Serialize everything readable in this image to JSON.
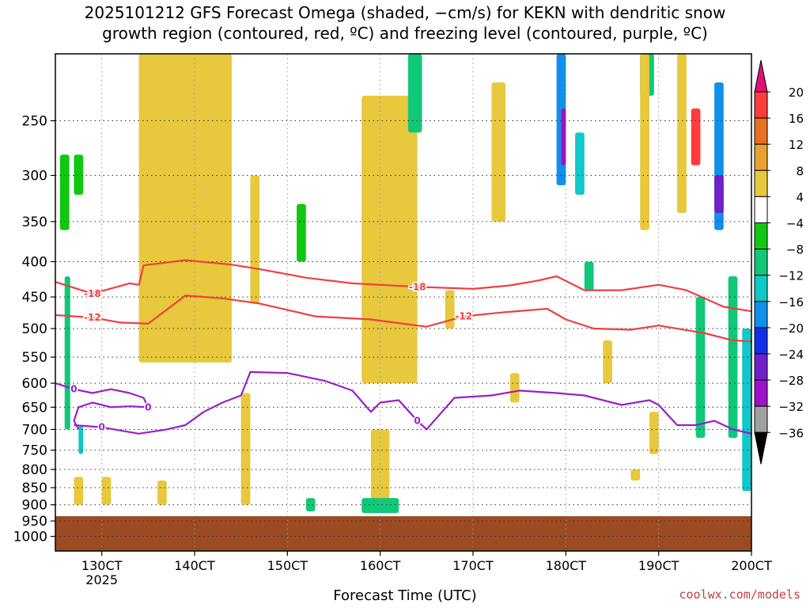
{
  "title_line1": "2025101212 GFS Forecast Omega (shaded, −cm/s) for KEKN with dendritic snow",
  "title_line2": "growth region (contoured, red, ºC) and freezing level (contoured, purple, ºC)",
  "credit": "coolwx.com/models",
  "chart_data": {
    "type": "heatmap",
    "title": "2025101212 GFS Forecast Omega (shaded, −cm/s) for KEKN with dendritic snow growth region (contoured, red, ºC) and freezing level (contoured, purple, ºC)",
    "xlabel": "Forecast Time (UTC)",
    "ylabel": "",
    "x_ticks": [
      "130CT",
      "140CT",
      "150CT",
      "160CT",
      "170CT",
      "180CT",
      "190CT",
      "200CT"
    ],
    "x_tick_values": [
      13,
      14,
      15,
      16,
      17,
      18,
      19,
      20
    ],
    "x_year_label": "2025",
    "xlim": [
      12.5,
      20
    ],
    "y_ticks": [
      250,
      300,
      350,
      400,
      450,
      500,
      550,
      600,
      650,
      700,
      750,
      800,
      850,
      900,
      950,
      1000
    ],
    "ylim": [
      1050,
      200
    ],
    "y_log": true,
    "grid": true,
    "colorbar": {
      "labels": [
        "20",
        "16",
        "12",
        "8",
        "4",
        "−4",
        "−8",
        "−12",
        "−16",
        "−20",
        "−24",
        "−28",
        "−32",
        "−36"
      ],
      "colors": [
        "#ff3c3c",
        "#e87020",
        "#e8a030",
        "#e8c83c",
        "#ffffff",
        "#10c810",
        "#10c878",
        "#10c8c8",
        "#1090e8",
        "#1030e8",
        "#7020c8",
        "#a010c8",
        "#a0a0a0"
      ],
      "top_arrow_color": "#e0107a",
      "bottom_arrow_color": "#000000"
    },
    "ground": {
      "pressure_top": 935,
      "color": "#9b4a22"
    },
    "contours": [
      {
        "label": "-18",
        "color": "#ee4040",
        "x": [
          12.5,
          12.9,
          13.3,
          13.4,
          13.45,
          13.9,
          14.4,
          14.7,
          15.2,
          15.7,
          16.4,
          17.0,
          17.4,
          17.7,
          17.9,
          18.2,
          18.6,
          19.0,
          19.3,
          19.7,
          20.0
        ],
        "p": [
          428,
          445,
          430,
          432,
          405,
          398,
          404,
          410,
          422,
          430,
          435,
          438,
          433,
          426,
          420,
          440,
          440,
          432,
          440,
          465,
          472
        ]
      },
      {
        "label": "-12",
        "color": "#ee4040",
        "x": [
          12.5,
          12.9,
          13.2,
          13.5,
          13.9,
          14.3,
          14.7,
          15.3,
          15.9,
          16.5,
          16.9,
          17.3,
          17.8,
          18.0,
          18.3,
          18.7,
          19.0,
          19.5,
          19.8,
          20.0
        ],
        "p": [
          478,
          482,
          490,
          492,
          448,
          452,
          460,
          480,
          485,
          497,
          480,
          474,
          468,
          485,
          500,
          502,
          495,
          508,
          520,
          522
        ]
      },
      {
        "label": "0",
        "color": "#9a20c8",
        "x": [
          12.5,
          12.7,
          12.9,
          13.1,
          13.3,
          13.45,
          13.5,
          13.3,
          13.1,
          12.9,
          12.75,
          12.7,
          12.75
        ],
        "p": [
          600,
          612,
          620,
          612,
          620,
          630,
          650,
          648,
          650,
          640,
          650,
          680,
          700
        ]
      },
      {
        "label": "0",
        "color": "#9a20c8",
        "x": [
          12.7,
          13.0,
          13.4,
          13.7,
          13.9,
          14.1,
          14.3,
          14.5,
          14.6,
          15.0,
          15.4,
          15.7,
          15.9,
          16.0,
          16.2,
          16.4,
          16.5,
          16.8,
          17.2,
          17.5,
          17.9,
          18.2,
          18.6,
          18.9,
          19.0,
          19.2,
          19.4,
          19.6,
          19.8,
          20.0
        ],
        "p": [
          690,
          695,
          710,
          700,
          690,
          660,
          640,
          625,
          578,
          580,
          595,
          615,
          660,
          640,
          635,
          680,
          700,
          630,
          625,
          615,
          620,
          625,
          645,
          635,
          645,
          690,
          690,
          680,
          700,
          710
        ]
      }
    ],
    "omega_cells": [
      {
        "x0": 12.55,
        "x1": 12.65,
        "p0": 280,
        "p1": 360,
        "value": -6
      },
      {
        "x0": 12.6,
        "x1": 12.66,
        "p0": 420,
        "p1": 700,
        "value": -8
      },
      {
        "x0": 12.7,
        "x1": 12.8,
        "p0": 280,
        "p1": 320,
        "value": -6
      },
      {
        "x0": 12.75,
        "x1": 12.8,
        "p0": 690,
        "p1": 760,
        "value": -12
      },
      {
        "x0": 13.5,
        "x1": 13.6,
        "p0": 430,
        "p1": 500,
        "value": -12
      },
      {
        "x0": 13.4,
        "x1": 14.4,
        "p0": 200,
        "p1": 560,
        "value": 5
      },
      {
        "x0": 14.2,
        "x1": 14.3,
        "p0": 310,
        "p1": 360,
        "value": 10
      },
      {
        "x0": 14.5,
        "x1": 14.6,
        "p0": 620,
        "p1": 900,
        "value": 5
      },
      {
        "x0": 14.6,
        "x1": 14.7,
        "p0": 300,
        "p1": 460,
        "value": 5
      },
      {
        "x0": 15.1,
        "x1": 15.2,
        "p0": 330,
        "p1": 400,
        "value": -6
      },
      {
        "x0": 15.8,
        "x1": 16.4,
        "p0": 230,
        "p1": 600,
        "value": 6
      },
      {
        "x0": 15.9,
        "x1": 16.1,
        "p0": 700,
        "p1": 920,
        "value": 6
      },
      {
        "x0": 16.3,
        "x1": 16.45,
        "p0": 200,
        "p1": 260,
        "value": -8
      },
      {
        "x0": 16.7,
        "x1": 16.8,
        "p0": 440,
        "p1": 500,
        "value": 5
      },
      {
        "x0": 17.2,
        "x1": 17.35,
        "p0": 220,
        "p1": 350,
        "value": 5
      },
      {
        "x0": 17.9,
        "x1": 18.0,
        "p0": 200,
        "p1": 310,
        "value": -16
      },
      {
        "x0": 17.95,
        "x1": 18.0,
        "p0": 240,
        "p1": 290,
        "value": -28
      },
      {
        "x0": 18.2,
        "x1": 18.3,
        "p0": 400,
        "p1": 440,
        "value": -8
      },
      {
        "x0": 18.1,
        "x1": 18.2,
        "p0": 260,
        "p1": 320,
        "value": -12
      },
      {
        "x0": 18.8,
        "x1": 18.95,
        "p0": 200,
        "p1": 230,
        "value": -8
      },
      {
        "x0": 19.35,
        "x1": 19.45,
        "p0": 240,
        "p1": 290,
        "value": 20
      },
      {
        "x0": 19.6,
        "x1": 19.7,
        "p0": 220,
        "p1": 360,
        "value": -16
      },
      {
        "x0": 19.6,
        "x1": 19.7,
        "p0": 300,
        "p1": 340,
        "value": -24
      },
      {
        "x0": 19.4,
        "x1": 19.5,
        "p0": 450,
        "p1": 720,
        "value": -10
      },
      {
        "x0": 19.75,
        "x1": 19.85,
        "p0": 420,
        "p1": 720,
        "value": -8
      },
      {
        "x0": 19.9,
        "x1": 20.0,
        "p0": 500,
        "p1": 860,
        "value": -12
      },
      {
        "x0": 19.2,
        "x1": 19.3,
        "p0": 200,
        "p1": 340,
        "value": 4
      },
      {
        "x0": 18.7,
        "x1": 18.8,
        "p0": 800,
        "p1": 830,
        "value": 5
      },
      {
        "x0": 18.9,
        "x1": 19.0,
        "p0": 660,
        "p1": 760,
        "value": 5
      },
      {
        "x0": 18.8,
        "x1": 18.9,
        "p0": 200,
        "p1": 360,
        "value": 4
      },
      {
        "x0": 15.2,
        "x1": 15.3,
        "p0": 880,
        "p1": 920,
        "value": -8
      },
      {
        "x0": 15.8,
        "x1": 16.2,
        "p0": 880,
        "p1": 925,
        "value": -8
      },
      {
        "x0": 18.4,
        "x1": 18.5,
        "p0": 520,
        "p1": 600,
        "value": 5
      },
      {
        "x0": 17.4,
        "x1": 17.5,
        "p0": 580,
        "p1": 640,
        "value": 5
      },
      {
        "x0": 13.0,
        "x1": 13.1,
        "p0": 820,
        "p1": 900,
        "value": 10
      },
      {
        "x0": 13.6,
        "x1": 13.7,
        "p0": 830,
        "p1": 900,
        "value": 5
      },
      {
        "x0": 12.7,
        "x1": 12.8,
        "p0": 820,
        "p1": 900,
        "value": 5
      }
    ]
  }
}
